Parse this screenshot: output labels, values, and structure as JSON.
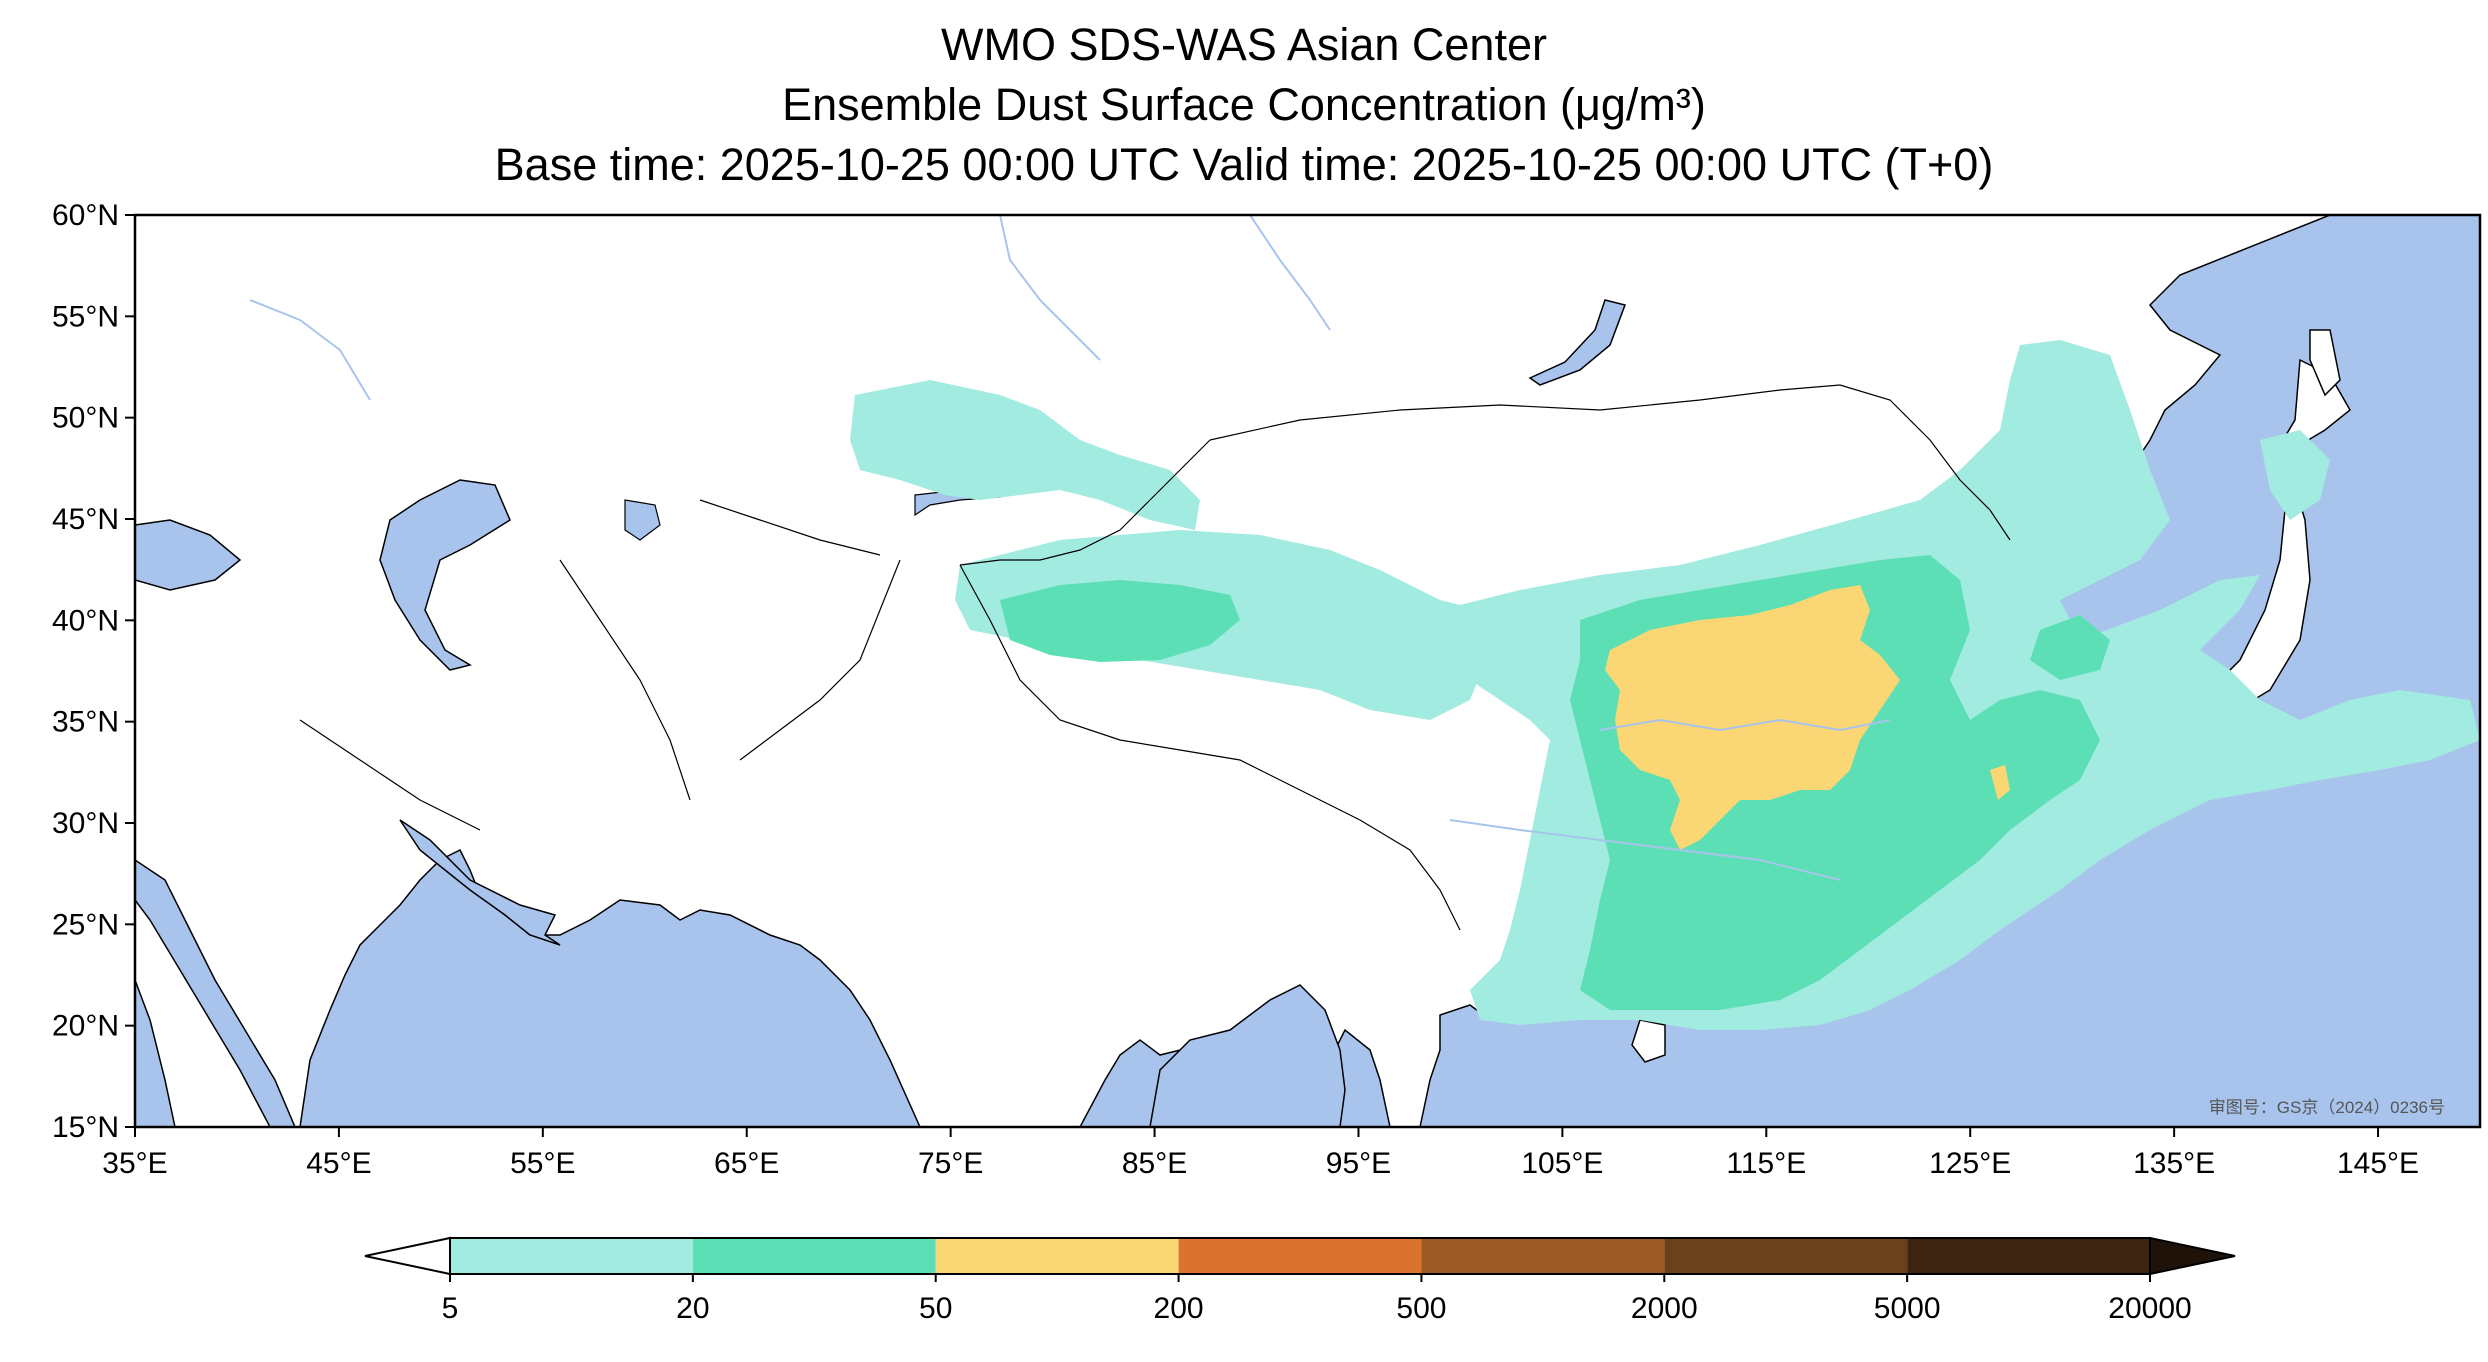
{
  "title": {
    "line1": "WMO SDS-WAS Asian Center",
    "line2": "Ensemble Dust Surface Concentration (μg/m³)",
    "line3": "Base time: 2025-10-25 00:00 UTC Valid time: 2025-10-25 00:00 UTC (T+0)"
  },
  "map": {
    "lon_range": [
      35,
      150
    ],
    "lat_range": [
      15,
      60
    ],
    "lon_labels": [
      "35°E",
      "45°E",
      "55°E",
      "65°E",
      "75°E",
      "85°E",
      "95°E",
      "105°E",
      "115°E",
      "125°E",
      "135°E",
      "145°E"
    ],
    "lat_labels": [
      "60°N",
      "55°N",
      "50°N",
      "45°N",
      "40°N",
      "35°N",
      "30°N",
      "25°N",
      "20°N",
      "15°N"
    ],
    "approval_number": "审图号：GS京（2024）0236号",
    "colors": {
      "ocean": "#a9c4ec",
      "land": "#ffffff",
      "border": "#000000",
      "river": "#a9c4ec"
    }
  },
  "colorbar": {
    "tick_labels": [
      "5",
      "20",
      "50",
      "200",
      "500",
      "2000",
      "5000",
      "20000"
    ],
    "bins": [
      {
        "from": 5,
        "to": 20,
        "color": "#a2ebe0"
      },
      {
        "from": 20,
        "to": 50,
        "color": "#5ddfb5"
      },
      {
        "from": 50,
        "to": 200,
        "color": "#fad774"
      },
      {
        "from": 200,
        "to": 500,
        "color": "#db722e"
      },
      {
        "from": 500,
        "to": 2000,
        "color": "#9b5a23"
      },
      {
        "from": 2000,
        "to": 5000,
        "color": "#6b411b"
      },
      {
        "from": 5000,
        "to": 20000,
        "color": "#3b2412"
      }
    ],
    "under_color": "#ffffff",
    "over_color": "#1f1209"
  }
}
